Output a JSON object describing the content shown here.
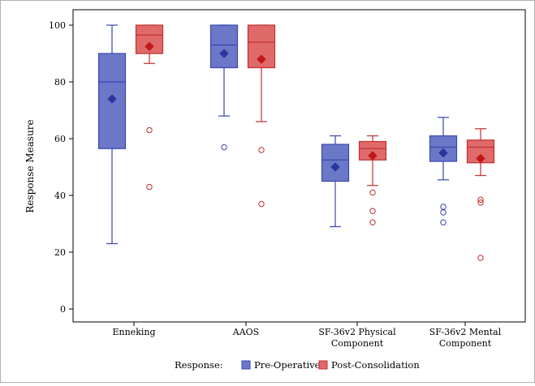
{
  "chart_data": {
    "type": "box",
    "ylabel": "Response Measure",
    "xlabel": "",
    "ylim": [
      0,
      100
    ],
    "yticks": [
      0,
      20,
      40,
      60,
      80,
      100
    ],
    "grid": false,
    "categories": [
      [
        "Enneking"
      ],
      [
        "AAOS"
      ],
      [
        "SF-36v2 Physical",
        "Component"
      ],
      [
        "SF-36v2 Mental",
        "Component"
      ]
    ],
    "legend": {
      "title": "Response:",
      "position": "bottom"
    },
    "series": [
      {
        "name": "Pre-Operative",
        "color": "#6b78c8",
        "edge": "#3a46b0",
        "marker": "#2a36a0",
        "boxes": [
          {
            "whisker_low": 23,
            "q1": 56.5,
            "median": 80,
            "q3": 90,
            "whisker_high": 100,
            "mean": 74,
            "outliers": []
          },
          {
            "whisker_low": 68,
            "q1": 85,
            "median": 93,
            "q3": 100,
            "whisker_high": 100,
            "mean": 90,
            "outliers": [
              57
            ]
          },
          {
            "whisker_low": 29,
            "q1": 45,
            "median": 52.5,
            "q3": 58,
            "whisker_high": 61,
            "mean": 50,
            "outliers": []
          },
          {
            "whisker_low": 45.5,
            "q1": 52,
            "median": 57,
            "q3": 61,
            "whisker_high": 67.5,
            "mean": 55,
            "outliers": [
              36,
              34,
              30.5
            ]
          }
        ]
      },
      {
        "name": "Post-Consolidation",
        "color": "#e06a6a",
        "edge": "#c03030",
        "marker": "#c01818",
        "boxes": [
          {
            "whisker_low": 86.5,
            "q1": 90,
            "median": 96.5,
            "q3": 100,
            "whisker_high": 100,
            "mean": 92.5,
            "outliers": [
              63,
              43
            ]
          },
          {
            "whisker_low": 66,
            "q1": 85,
            "median": 94,
            "q3": 100,
            "whisker_high": 100,
            "mean": 88,
            "outliers": [
              56,
              37
            ]
          },
          {
            "whisker_low": 43.5,
            "q1": 52.5,
            "median": 56.5,
            "q3": 59,
            "whisker_high": 61,
            "mean": 54,
            "outliers": [
              41,
              34.5,
              30.5
            ]
          },
          {
            "whisker_low": 47,
            "q1": 51.5,
            "median": 57,
            "q3": 59.5,
            "whisker_high": 63.5,
            "mean": 53,
            "outliers": [
              38.5,
              37.5,
              18
            ]
          }
        ]
      }
    ]
  }
}
